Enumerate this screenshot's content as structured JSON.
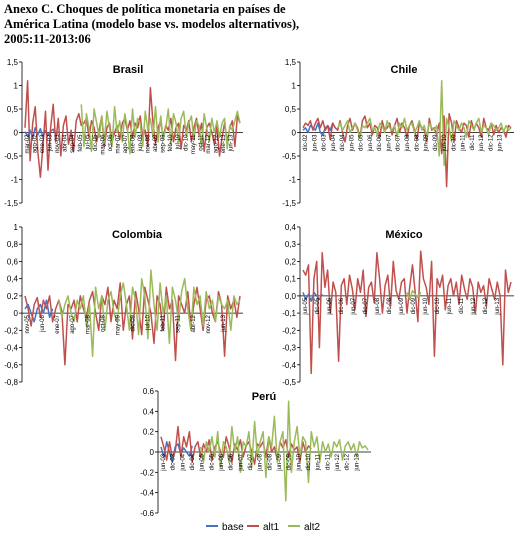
{
  "figure": {
    "title_lines": [
      "Anexo C.  Choques de política monetaria en países de",
      "América Latina (modelo base vs. modelos alternativos),",
      "2005:11-2013:06"
    ]
  },
  "colors": {
    "base": "#4472C4",
    "alt1": "#C0504D",
    "alt2": "#9BBB59"
  },
  "chart_data": [
    {
      "type": "line",
      "title": "Brasil",
      "ylim": [
        -1.5,
        1.5
      ],
      "y_ticks": [
        "1,5",
        "1",
        "0,5",
        "0",
        "-0,5",
        "-1",
        "-1,5"
      ],
      "x_tick_labels": [
        "mar-02",
        "ago-02",
        "ene-03",
        "jun-03",
        "nov-03",
        "abr-04",
        "sep-04",
        "feb-05",
        "jul-05",
        "dic-05",
        "may-06",
        "oct-06",
        "mar-07",
        "ago-07",
        "ene-08",
        "jun-08",
        "nov-08",
        "abr-09",
        "sep-09",
        "feb-10",
        "jul-10",
        "dic-10",
        "may-11",
        "oct-11",
        "mar-12",
        "ago-12",
        "ene-13",
        "jun-13"
      ],
      "series": [
        {
          "name": "base",
          "start": 0,
          "values": [
            0.02,
            -0.08,
            0.05,
            -0.12,
            0.1,
            -0.05,
            0.08,
            -0.1,
            0.04,
            -0.06,
            0.03,
            0.07,
            -0.04,
            0.02
          ]
        },
        {
          "name": "alt1",
          "start": 0,
          "values": [
            0.1,
            1.1,
            -0.6,
            0.2,
            0.55,
            -0.4,
            -0.95,
            -0.3,
            0.45,
            -0.8,
            0.1,
            0.6,
            -0.2,
            0.3,
            -0.5,
            0.15,
            0.35,
            -0.25,
            0.05,
            -0.4,
            0.25,
            0.4,
            0.15,
            0.2,
            0.3,
            -0.1,
            0.25,
            0.1,
            -0.2,
            0.05,
            0.35,
            -0.3,
            0.1,
            0.2,
            -0.2,
            0.0,
            0.15,
            -0.15,
            0.2,
            0.3,
            0.05,
            0.25,
            -0.1,
            0.2,
            0.1,
            0.35,
            -0.1,
            0.05,
            -0.3,
            0.95,
            0.2,
            -0.25,
            0.1,
            0.25,
            -0.1,
            0.15,
            0.05,
            0.3,
            -0.2,
            0.1,
            0.2,
            -0.35,
            0.15,
            0.05,
            0.25,
            -0.2,
            0.1,
            0.3,
            -0.05,
            0.2,
            -0.4,
            0.1,
            0.2,
            0.0,
            -0.25,
            0.15,
            -0.5,
            -0.1,
            0.2,
            -0.2,
            0.1,
            0.25,
            -0.3,
            0.35,
            0.2
          ]
        },
        {
          "name": "alt2",
          "start": 22,
          "values": [
            0.6,
            -0.3,
            0.4,
            0.1,
            -0.4,
            0.5,
            0.2,
            -0.1,
            0.35,
            -0.2,
            0.45,
            0.1,
            -0.3,
            0.55,
            0.0,
            0.25,
            -0.2,
            0.4,
            0.1,
            -0.45,
            0.5,
            -0.1,
            0.3,
            0.2,
            -0.3,
            0.45,
            0.05,
            0.3,
            -0.1,
            0.55,
            -0.2,
            0.35,
            -0.15,
            0.1,
            0.5,
            -0.25,
            0.4,
            0.2,
            -0.2,
            0.3,
            0.45,
            -0.1,
            0.2,
            0.35,
            -0.15,
            0.25,
            0.15,
            -0.3,
            0.4,
            0.1,
            -0.2,
            0.3,
            0.0,
            0.25,
            -0.1,
            0.2,
            0.3,
            -0.35,
            0.15,
            0.05,
            0.25,
            0.45,
            0.2
          ]
        }
      ]
    },
    {
      "type": "line",
      "title": "Chile",
      "ylim": [
        -1.5,
        1.5
      ],
      "y_ticks": [
        "1,5",
        "1",
        "0,5",
        "0",
        "-0,5",
        "-1",
        "-1,5"
      ],
      "x_tick_labels": [
        "dic-02",
        "jun-03",
        "dic-03",
        "jun-04",
        "dic-04",
        "jun-05",
        "dic-05",
        "jun-06",
        "dic-06",
        "jun-07",
        "dic-07",
        "jun-08",
        "dic-08",
        "jun-09",
        "dic-09",
        "jun-10",
        "dic-10",
        "jun-11",
        "dic-11",
        "jun-12",
        "dic-12",
        "jun-13"
      ],
      "series": [
        {
          "name": "base",
          "start": 0,
          "values": [
            0.05,
            0.1,
            0.0,
            0.15,
            0.1,
            0.05,
            0.2,
            0.0,
            -0.05,
            0.1,
            0.15,
            0.05,
            0.2,
            0.1
          ]
        },
        {
          "name": "alt1",
          "start": 0,
          "values": [
            0.1,
            0.2,
            0.15,
            0.25,
            0.05,
            0.2,
            0.3,
            0.1,
            0.25,
            0.05,
            0.15,
            -0.15,
            0.2,
            0.1,
            0.05,
            0.25,
            0.0,
            -0.2,
            0.15,
            0.3,
            0.05,
            0.2,
            0.1,
            -0.1,
            0.25,
            0.35,
            0.1,
            0.2,
            -0.05,
            0.15,
            0.1,
            -0.1,
            0.25,
            0.05,
            0.1,
            0.2,
            -0.05,
            0.15,
            0.3,
            0.0,
            0.2,
            0.1,
            -0.1,
            0.15,
            0.25,
            0.05,
            -0.15,
            0.2,
            0.1,
            0.05,
            -0.2,
            0.3,
            0.05,
            0.1,
            -0.05,
            0.2,
            -0.45,
            0.35,
            -1.15,
            0.4,
            0.2,
            -0.2,
            0.25,
            0.1,
            0.0,
            0.2,
            0.15,
            -0.1,
            0.25,
            0.05,
            0.2,
            0.1,
            -0.1,
            0.3,
            0.1,
            0.05,
            0.2,
            -0.05,
            0.15,
            0.0,
            0.1,
            0.05,
            -0.1,
            0.15,
            0.1
          ]
        },
        {
          "name": "alt2",
          "start": 14,
          "values": [
            0.1,
            0.2,
            0.05,
            0.15,
            0.25,
            0.0,
            0.1,
            0.2,
            0.05,
            -0.1,
            0.15,
            0.1,
            0.2,
            0.3,
            0.05,
            0.1,
            -0.05,
            0.2,
            0.15,
            0.0,
            0.25,
            0.1,
            0.05,
            0.15,
            -0.1,
            0.2,
            0.1,
            0.3,
            0.05,
            0.15,
            0.2,
            0.0,
            0.1,
            0.25,
            0.05,
            0.15,
            -0.1,
            0.2,
            0.1,
            0.05,
            0.15,
            -0.5,
            1.1,
            -0.7,
            0.3,
            0.1,
            -0.2,
            0.25,
            0.15,
            0.05,
            0.2,
            0.1,
            -0.1,
            0.25,
            0.15,
            0.05,
            0.2,
            0.3,
            0.0,
            0.15,
            0.1,
            -0.05,
            0.2,
            0.15,
            0.05,
            0.1,
            0.2,
            0.0,
            0.15,
            0.05,
            0.1
          ]
        }
      ]
    },
    {
      "type": "line",
      "title": "Colombia",
      "ylim": [
        -0.8,
        1.0
      ],
      "y_ticks": [
        "1",
        "0,8",
        "0,6",
        "0,4",
        "0,2",
        "0",
        "-0,2",
        "-0,4",
        "-0,6",
        "-0,8"
      ],
      "x_tick_labels": [
        "nov-05",
        "jun-06",
        "ene-07",
        "ago-07",
        "mar-08",
        "oct-08",
        "may-09",
        "dic-09",
        "jul-10",
        "feb-11",
        "sep-11",
        "abr-12",
        "nov-12",
        "jun-13"
      ],
      "series": [
        {
          "name": "base",
          "start": 0,
          "values": [
            0.05,
            0.1,
            0.0,
            -0.1,
            0.05,
            0.1,
            0.0,
            0.15,
            -0.05,
            0.05
          ]
        },
        {
          "name": "alt1",
          "start": 0,
          "values": [
            0.2,
            0.05,
            -0.15,
            0.1,
            0.18,
            -0.05,
            0.15,
            0.05,
            0.2,
            -0.1,
            0.05,
            0.15,
            0.02,
            -0.6,
            0.1,
            0.05,
            0.15,
            -0.1,
            0.2,
            0.05,
            -0.05,
            0.15,
            0.25,
            0.0,
            -0.2,
            0.2,
            0.1,
            0.3,
            -0.1,
            0.15,
            0.05,
            0.35,
            -0.2,
            0.1,
            0.2,
            -0.3,
            0.25,
            0.05,
            -0.25,
            0.3,
            0.15,
            0.0,
            -0.35,
            0.2,
            0.1,
            -0.2,
            0.3,
            0.05,
            0.15,
            -0.55,
            0.2,
            0.1,
            0.0,
            0.25,
            -0.15,
            0.1,
            0.3,
            0.05,
            -0.2,
            0.15,
            0.2,
            0.0,
            -0.1,
            0.25,
            0.1,
            -0.5,
            0.2,
            0.05,
            0.15,
            -0.05,
            0.2
          ]
        },
        {
          "name": "alt2",
          "start": 11,
          "values": [
            0.15,
            -0.05,
            0.1,
            0.2,
            0.0,
            -0.1,
            0.15,
            0.05,
            0.2,
            -0.15,
            0.1,
            -0.5,
            0.3,
            0.05,
            0.2,
            -0.2,
            0.15,
            0.25,
            0.0,
            -0.1,
            0.2,
            0.35,
            0.1,
            -0.2,
            0.3,
            0.15,
            -0.25,
            0.4,
            0.2,
            -0.3,
            0.5,
            0.1,
            -0.2,
            0.35,
            0.0,
            0.2,
            -0.35,
            0.3,
            0.15,
            -0.1,
            0.25,
            0.4,
            0.05,
            -0.2,
            0.3,
            0.1,
            0.2,
            -0.15,
            0.25,
            0.05,
            0.15,
            -0.1,
            0.2,
            0.1,
            0.05,
            0.15,
            -0.2,
            0.2,
            0.1,
            0.15
          ]
        }
      ]
    },
    {
      "type": "line",
      "title": "México",
      "ylim": [
        -0.5,
        0.4
      ],
      "y_ticks": [
        "0,4",
        "0,3",
        "0,2",
        "0,1",
        "0,0",
        "-0,1",
        "-0,2",
        "-0,3",
        "-0,4",
        "-0,5"
      ],
      "x_tick_labels": [
        "jun-05",
        "dic-05",
        "jun-06",
        "dic-06",
        "jun-07",
        "dic-07",
        "jun-08",
        "dic-08",
        "jun-09",
        "dic-09",
        "jun-10",
        "dic-10",
        "jun-11",
        "dic-11",
        "jun-12",
        "dic-12",
        "jun-13"
      ],
      "series": [
        {
          "name": "base",
          "start": 0,
          "values": [
            0.02,
            -0.02,
            0.01,
            -0.03,
            0.02,
            0.0,
            -0.02,
            0.01
          ]
        },
        {
          "name": "alt1",
          "start": 0,
          "values": [
            0.15,
            0.12,
            0.18,
            -0.45,
            0.1,
            0.2,
            -0.3,
            0.25,
            0.05,
            0.15,
            -0.1,
            0.08,
            0.02,
            -0.38,
            0.06,
            0.1,
            -0.05,
            0.12,
            0.04,
            -0.08,
            0.1,
            0.02,
            0.15,
            -0.12,
            0.05,
            0.08,
            -0.04,
            0.25,
            0.1,
            -0.1,
            0.06,
            0.12,
            -0.06,
            0.2,
            0.03,
            -0.02,
            0.08,
            0.1,
            -0.1,
            0.05,
            0.18,
            0.02,
            -0.15,
            0.26,
            0.1,
            0.05,
            -0.05,
            0.2,
            -0.35,
            0.1,
            0.05,
            0.12,
            -0.08,
            0.06,
            0.1,
            0.0,
            0.08,
            -0.05,
            0.12,
            0.04,
            -0.02,
            0.1,
            0.05,
            -0.1,
            0.08,
            0.02,
            0.06,
            -0.06,
            0.1,
            0.04,
            -0.02,
            0.08,
            0.0,
            -0.4,
            0.15,
            0.02,
            0.08
          ]
        },
        {
          "name": "alt2",
          "start": 38,
          "values": [
            0.02,
            -0.02,
            0.03,
            0.01,
            -0.01,
            0.02
          ]
        }
      ]
    },
    {
      "type": "line",
      "title": "Perú",
      "ylim": [
        -0.6,
        0.6
      ],
      "y_ticks": [
        "0.6",
        "0.4",
        "0.2",
        "0",
        "-0.2",
        "-0.4",
        "-0.6"
      ],
      "x_tick_labels": [
        "jun-03",
        "dic-03",
        "jun-04",
        "dic-04",
        "jun-05",
        "dic-05",
        "jun-06",
        "dic-06",
        "jun-07",
        "dic-07",
        "jun-08",
        "dic-08",
        "jun-09",
        "dic-09",
        "jun-10",
        "dic-10",
        "jun-11",
        "dic-11",
        "jun-12",
        "dic-12",
        "jun-13"
      ],
      "series": [
        {
          "name": "base",
          "start": 0,
          "values": [
            0.05,
            -0.05,
            0.1,
            0.0,
            -0.1,
            0.05,
            0.08,
            -0.02,
            0.04,
            0.0,
            -0.04,
            0.06
          ]
        },
        {
          "name": "alt1",
          "start": 0,
          "values": [
            0.15,
            0.05,
            -0.08,
            0.1,
            -0.05,
            0.0,
            0.25,
            -0.05,
            0.15,
            0.05,
            0.2,
            -0.1,
            0.05,
            0.1,
            -0.05,
            0.08,
            0.0,
            0.12,
            -0.08,
            0.05,
            0.1,
            0.0,
            -0.05,
            0.15,
            0.05,
            -0.1,
            0.08,
            0.02,
            0.12,
            -0.05,
            0.06,
            0.1,
            0.0,
            -0.12,
            0.08,
            0.05,
            0.1,
            -0.05,
            0.15,
            0.0,
            0.05,
            -0.08,
            0.1,
            0.04,
            0.12,
            -0.05,
            0.08,
            0.02,
            0.05,
            -0.1,
            0.1,
            0.0,
            0.06,
            0.03
          ]
        },
        {
          "name": "alt2",
          "start": 14,
          "values": [
            0.05,
            -0.1,
            0.1,
            0.0,
            0.15,
            -0.05,
            0.2,
            -0.15,
            0.1,
            0.05,
            -0.1,
            0.25,
            0.0,
            0.15,
            -0.2,
            0.1,
            0.05,
            0.2,
            -0.15,
            0.3,
            -0.05,
            0.1,
            0.2,
            -0.25,
            0.15,
            0.05,
            0.35,
            -0.1,
            0.1,
            0.2,
            -0.48,
            0.5,
            -0.2,
            0.1,
            0.25,
            -0.05,
            0.15,
            0.1,
            -0.3,
            0.2,
            0.05,
            0.15,
            -0.1,
            0.1,
            0.0,
            0.08,
            -0.05,
            0.1,
            0.05,
            0.12,
            -0.08,
            0.06,
            0.1,
            0.02,
            0.08,
            -0.05,
            0.1,
            0.04,
            0.06,
            0.02
          ]
        }
      ]
    }
  ],
  "legend": {
    "items": [
      {
        "series": "base",
        "label": "base"
      },
      {
        "series": "alt1",
        "label": "alt1"
      },
      {
        "series": "alt2",
        "label": "alt2"
      }
    ]
  }
}
